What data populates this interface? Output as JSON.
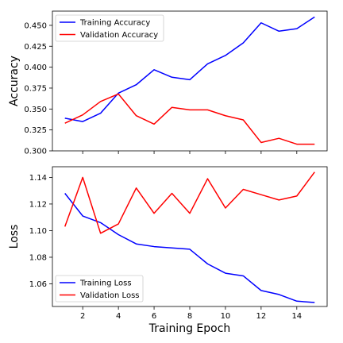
{
  "chart_data": [
    {
      "type": "line",
      "ylabel": "Accuracy",
      "xlabel": "",
      "xlim": [
        0.3,
        15.7
      ],
      "ylim": [
        0.3,
        0.467
      ],
      "xticks": [
        2,
        4,
        6,
        8,
        10,
        12,
        14
      ],
      "yticks": [
        0.3,
        0.325,
        0.35,
        0.375,
        0.4,
        0.425,
        0.45
      ],
      "ytick_labels": [
        "0.300",
        "0.325",
        "0.350",
        "0.375",
        "0.400",
        "0.425",
        "0.450"
      ],
      "show_xtick_labels": false,
      "grid": false,
      "legend_position": "top-left",
      "x": [
        1,
        2,
        3,
        4,
        5,
        6,
        7,
        8,
        9,
        10,
        11,
        12,
        13,
        14,
        15
      ],
      "series": [
        {
          "name": "Training Accuracy",
          "color": "#0000ff",
          "values": [
            0.339,
            0.335,
            0.345,
            0.369,
            0.379,
            0.397,
            0.388,
            0.385,
            0.404,
            0.414,
            0.429,
            0.453,
            0.443,
            0.446,
            0.46
          ]
        },
        {
          "name": "Validation Accuracy",
          "color": "#ff0000",
          "values": [
            0.333,
            0.343,
            0.359,
            0.368,
            0.342,
            0.332,
            0.352,
            0.349,
            0.349,
            0.342,
            0.337,
            0.31,
            0.315,
            0.308,
            0.308
          ]
        }
      ]
    },
    {
      "type": "line",
      "ylabel": "Loss",
      "xlabel": "Training Epoch",
      "xlim": [
        0.3,
        15.7
      ],
      "ylim": [
        1.043,
        1.148
      ],
      "xticks": [
        2,
        4,
        6,
        8,
        10,
        12,
        14
      ],
      "yticks": [
        1.06,
        1.08,
        1.1,
        1.12,
        1.14
      ],
      "ytick_labels": [
        "1.06",
        "1.08",
        "1.10",
        "1.12",
        "1.14"
      ],
      "xtick_labels": [
        "2",
        "4",
        "6",
        "8",
        "10",
        "12",
        "14"
      ],
      "show_xtick_labels": true,
      "grid": false,
      "legend_position": "bottom-left",
      "x": [
        1,
        2,
        3,
        4,
        5,
        6,
        7,
        8,
        9,
        10,
        11,
        12,
        13,
        14,
        15
      ],
      "series": [
        {
          "name": "Training Loss",
          "color": "#0000ff",
          "values": [
            1.128,
            1.111,
            1.106,
            1.097,
            1.09,
            1.088,
            1.087,
            1.086,
            1.075,
            1.068,
            1.066,
            1.055,
            1.052,
            1.047,
            1.046
          ]
        },
        {
          "name": "Validation Loss",
          "color": "#ff0000",
          "values": [
            1.103,
            1.14,
            1.098,
            1.105,
            1.132,
            1.113,
            1.128,
            1.113,
            1.139,
            1.117,
            1.131,
            1.127,
            1.123,
            1.126,
            1.144
          ]
        }
      ]
    }
  ]
}
